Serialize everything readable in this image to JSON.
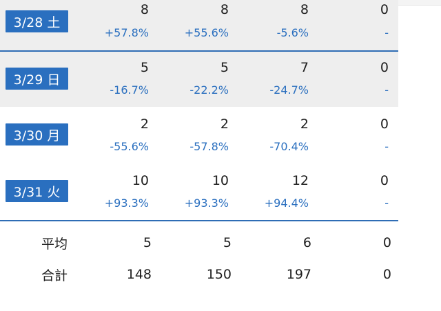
{
  "rows": [
    {
      "date": "3/28 土",
      "values": [
        "8",
        "8",
        "8",
        "0"
      ],
      "pct": [
        "+57.8%",
        "+55.6%",
        "-5.6%",
        "-"
      ]
    },
    {
      "date": "3/29 日",
      "values": [
        "5",
        "5",
        "7",
        "0"
      ],
      "pct": [
        "-16.7%",
        "-22.2%",
        "-24.7%",
        "-"
      ]
    },
    {
      "date": "3/30 月",
      "values": [
        "2",
        "2",
        "2",
        "0"
      ],
      "pct": [
        "-55.6%",
        "-57.8%",
        "-70.4%",
        "-"
      ]
    },
    {
      "date": "3/31 火",
      "values": [
        "10",
        "10",
        "12",
        "0"
      ],
      "pct": [
        "+93.3%",
        "+93.3%",
        "+94.4%",
        "-"
      ]
    }
  ],
  "summary": {
    "average": {
      "label": "平均",
      "values": [
        "5",
        "5",
        "6",
        "0"
      ]
    },
    "total": {
      "label": "合計",
      "values": [
        "148",
        "150",
        "197",
        "0"
      ]
    }
  },
  "colors": {
    "accent": "#2a6fbf",
    "shade": "#eeeeee",
    "text": "#1e1e1e"
  }
}
